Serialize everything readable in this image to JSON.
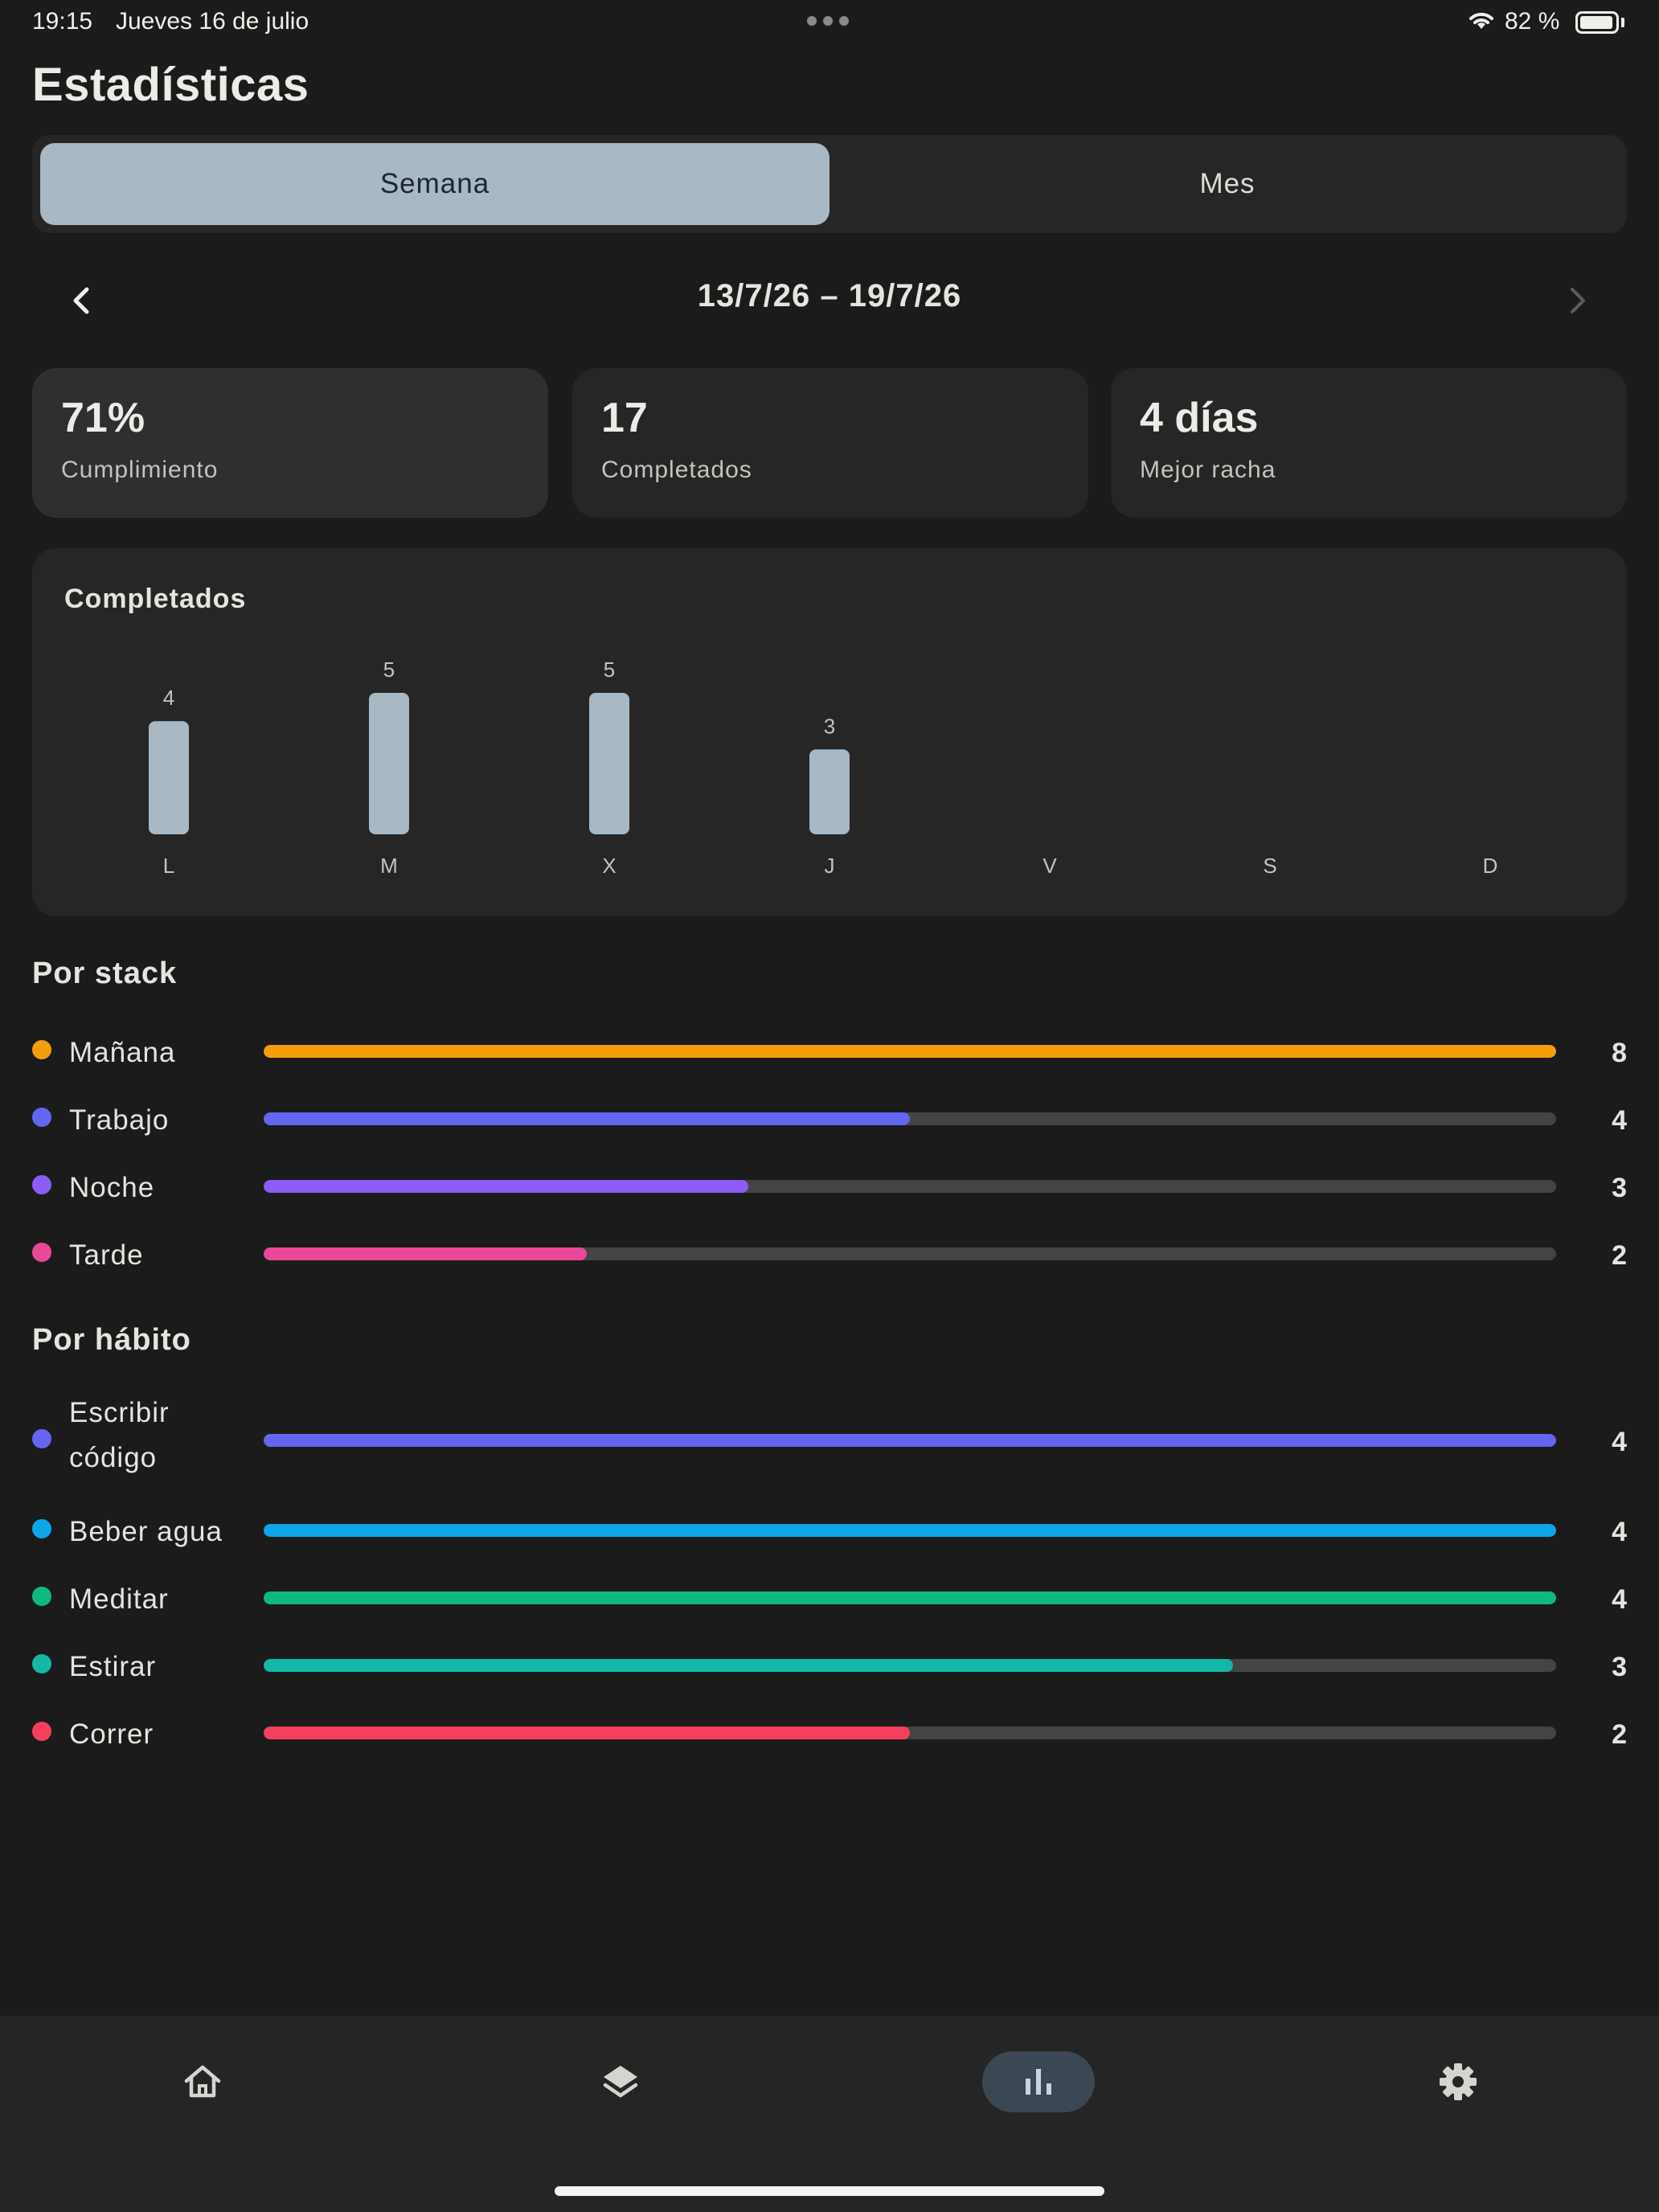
{
  "status": {
    "time": "19:15",
    "date": "Jueves 16 de julio",
    "battery": "82 %"
  },
  "page": {
    "title": "Estadísticas"
  },
  "segment": {
    "week": "Semana",
    "month": "Mes",
    "selected": "Semana"
  },
  "date_nav": {
    "range": "13/7/26 – 19/7/26"
  },
  "stats": [
    {
      "value": "71%",
      "label": "Cumplimiento"
    },
    {
      "value": "17",
      "label": "Completados"
    },
    {
      "value": "4 días",
      "label": "Mejor racha"
    }
  ],
  "chart_data": {
    "type": "bar",
    "title": "Completados",
    "categories": [
      "L",
      "M",
      "X",
      "J",
      "V",
      "S",
      "D"
    ],
    "values": [
      4,
      5,
      5,
      3,
      null,
      null,
      null
    ],
    "ylim": [
      0,
      5
    ],
    "bar_color": "#a8b8c5",
    "grid": false
  },
  "by_stack": {
    "title": "Por stack",
    "max": 8,
    "items": [
      {
        "name": "Mañana",
        "count": 8,
        "color": "#f59e0b"
      },
      {
        "name": "Trabajo",
        "count": 4,
        "color": "#6366f1"
      },
      {
        "name": "Noche",
        "count": 3,
        "color": "#8b5cf6"
      },
      {
        "name": "Tarde",
        "count": 2,
        "color": "#ec4899"
      }
    ]
  },
  "by_habit": {
    "title": "Por hábito",
    "max": 4,
    "items": [
      {
        "name": "Escribir código",
        "count": 4,
        "color": "#6366f1"
      },
      {
        "name": "Beber agua",
        "count": 4,
        "color": "#0ea5e9"
      },
      {
        "name": "Meditar",
        "count": 4,
        "color": "#10b981"
      },
      {
        "name": "Estirar",
        "count": 3,
        "color": "#14b8a6"
      },
      {
        "name": "Correr",
        "count": 2,
        "color": "#f43f5e"
      }
    ]
  },
  "bottom_nav": {
    "items": [
      "home-icon",
      "layers-icon",
      "bar-chart-icon",
      "gear-icon"
    ],
    "selected": "bar-chart-icon"
  }
}
